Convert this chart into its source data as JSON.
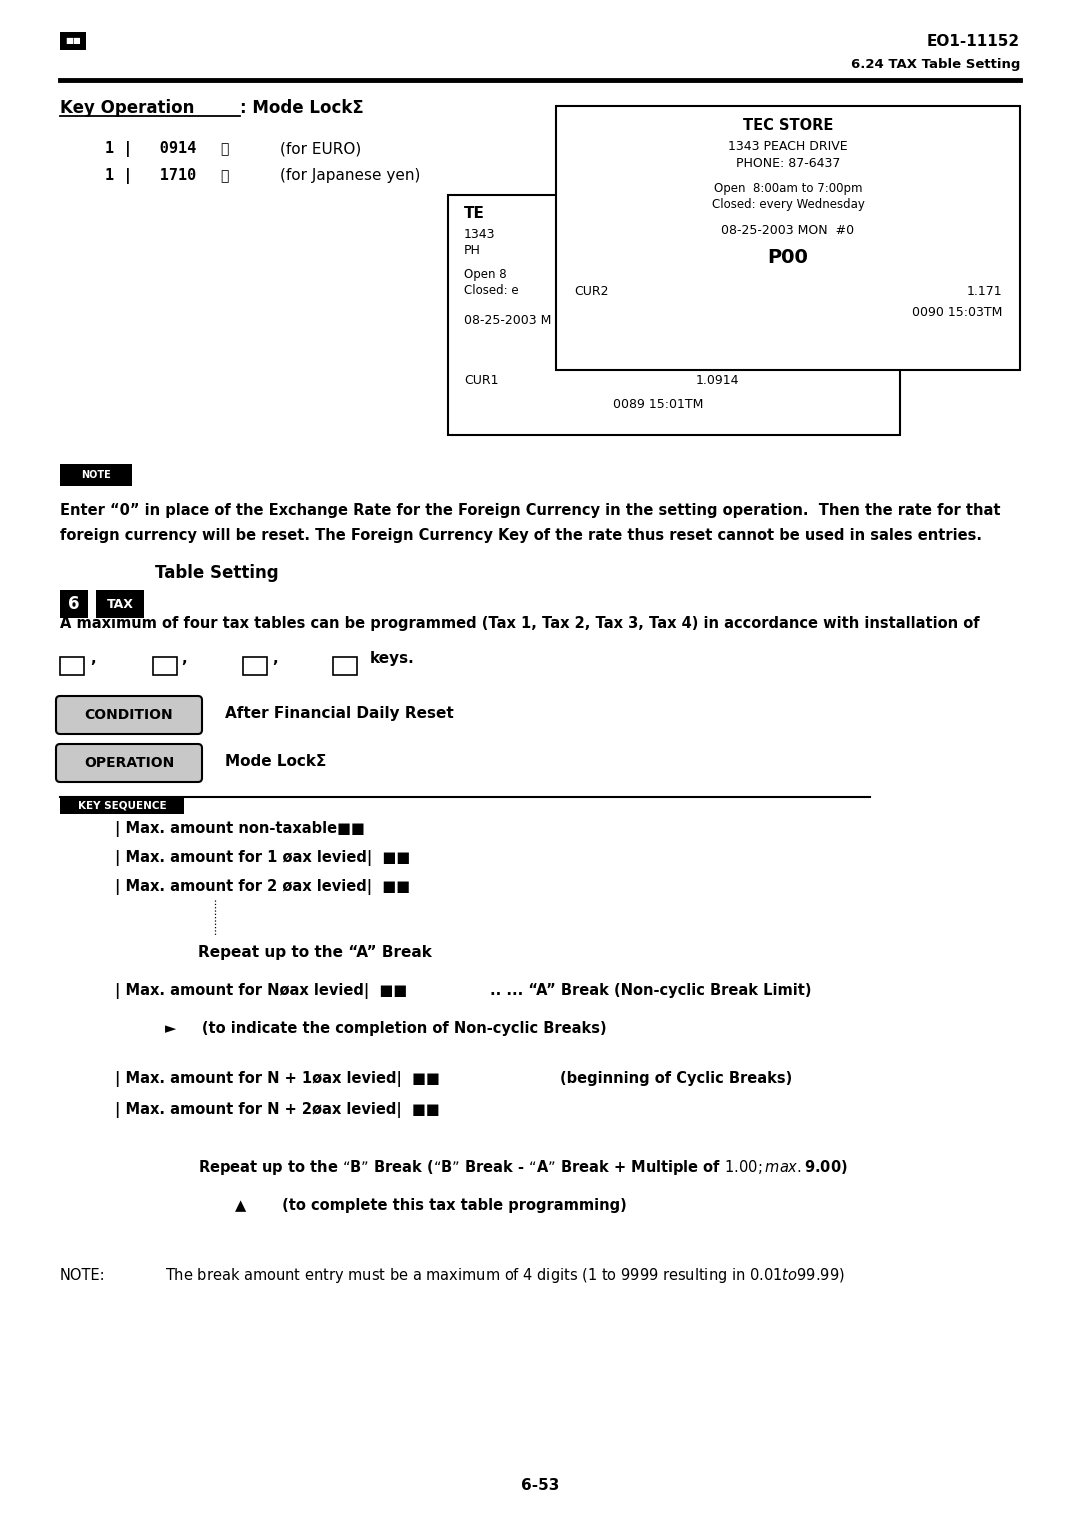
{
  "page_width": 10.8,
  "page_height": 15.28,
  "bg_color": "#ffffff",
  "header_right": "EO1-11152",
  "subheader_right": "6.24 TAX Table Setting",
  "key_op_1_code": "1 |   0914",
  "key_op_1_desc": "(for EURO)",
  "key_op_2_code": "1 |   1710",
  "key_op_2_desc": "(for Japanese yen)",
  "receipt2_title": "TEC STORE",
  "receipt2_addr": "1343 PEACH DRIVE",
  "receipt2_phone": "PHONE: 87-6437",
  "receipt2_open": "Open  8:00am to 7:00pm",
  "receipt2_closed": "Closed: every Wednesday",
  "receipt2_date": "08-25-2003 MON  #0",
  "receipt2_p00": "P00",
  "receipt2_cur2": "CUR2",
  "receipt2_cur2_val": "1.171",
  "receipt2_time": "0090 15:03TM",
  "receipt1_line1": "TE",
  "receipt1_line2": "1343",
  "receipt1_line3": "PH",
  "receipt1_line4": "Open 8",
  "receipt1_line5": "Closed: e",
  "receipt1_date": "08-25-2003 M",
  "receipt1_cur1": "CUR1",
  "receipt1_cur1_val": "1.0914",
  "receipt1_time": "0089 15:01TM",
  "reset_text1": "Enter “0” in place of the Exchange Rate for the Foreign Currency in the setting operation.  Then the rate for that",
  "reset_text2": "foreign currency will be reset. The Foreign Currency Key of the rate thus reset cannot be used in sales entries.",
  "intro_text1": "A maximum of four tax tables can be programmed (Tax 1, Tax 2, Tax 3, Tax 4) in accordance with installation of",
  "intro_text2_suffix": "keys.",
  "condition_label": "CONDITION",
  "condition_text": "After Financial Daily Reset",
  "operation_label": "OPERATION",
  "operation_text": "Mode LockΣ",
  "key_seq_label": "KEY SEQUENCE",
  "ks_line1": "| Max. amount non-taxable■■",
  "ks_line2": "| Max. amount for 1 øax levied|  ■■",
  "ks_line3": "| Max. amount for 2 øax levied|  ■■",
  "repeat_a": "Repeat up to the “A” Break",
  "ks_line_n": "| Max. amount for Nøax levied|  ■■",
  "ks_line_n_suffix": ".. ... “A” Break (Non-cyclic Break Limit)",
  "ks_arrow": "►     (to indicate the completion of Non-cyclic Breaks)",
  "ks_np1": "| Max. amount for N + 1øax levied|  ■■",
  "ks_np1_suffix": "(beginning of Cyclic Breaks)",
  "ks_np2": "| Max. amount for N + 2øax levied|  ■■",
  "repeat_b": "Repeat up to the “B” Break (“B” Break - “A” Break + Multiple of $1.00; max. $9.00)",
  "complete_text": "▲       (to complete this tax table programming)",
  "note_label": "NOTE:",
  "note_text": "The break amount entry must be a maximum of 4 digits (1 to 9999 resulting in $0.01 to $99.99)",
  "page_num": "6-53"
}
